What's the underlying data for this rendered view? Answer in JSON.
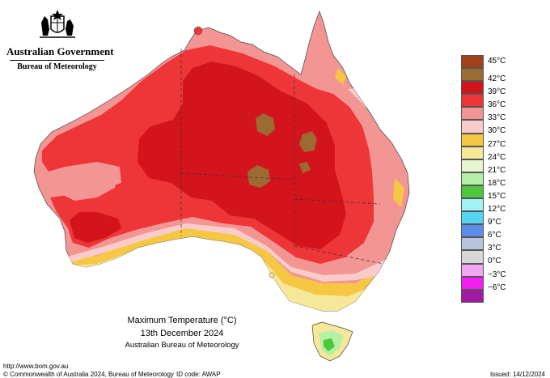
{
  "government": {
    "name": "Australian Government",
    "bureau": "Bureau of Meteorology"
  },
  "map": {
    "title": "Maximum Temperature (°C)",
    "date": "13th December 2024",
    "organisation": "Australian Bureau of Meteorology",
    "region": "Australia"
  },
  "legend": {
    "items": [
      {
        "label": "45°C",
        "color": "#a0411c"
      },
      {
        "label": "42°C",
        "color": "#9c6b33"
      },
      {
        "label": "39°C",
        "color": "#d4141c"
      },
      {
        "label": "36°C",
        "color": "#ee3538"
      },
      {
        "label": "33°C",
        "color": "#f29593"
      },
      {
        "label": "30°C",
        "color": "#f9cccb"
      },
      {
        "label": "27°C",
        "color": "#f6c743"
      },
      {
        "label": "24°C",
        "color": "#f6e799"
      },
      {
        "label": "21°C",
        "color": "#e7f5d1"
      },
      {
        "label": "18°C",
        "color": "#b4f0a6"
      },
      {
        "label": "15°C",
        "color": "#4ec63e"
      },
      {
        "label": "12°C",
        "color": "#9ff3f4"
      },
      {
        "label": "9°C",
        "color": "#56d5f3"
      },
      {
        "label": "6°C",
        "color": "#5a8ee8"
      },
      {
        "label": "3°C",
        "color": "#b9c3de"
      },
      {
        "label": "0°C",
        "color": "#d7d7d7"
      },
      {
        "label": "−3°C",
        "color": "#f5a5f4"
      },
      {
        "label": "−6°C",
        "color": "#f21ef2"
      },
      {
        "label": "",
        "color": "#a219a4"
      }
    ]
  },
  "footer": {
    "url": "http://www.bom.gov.au",
    "copyright": "© Commonwealth of Australia 2024, Bureau of Meteorology",
    "id_code": "ID code: AWAP",
    "issued": "Issued: 14/12/2024"
  }
}
